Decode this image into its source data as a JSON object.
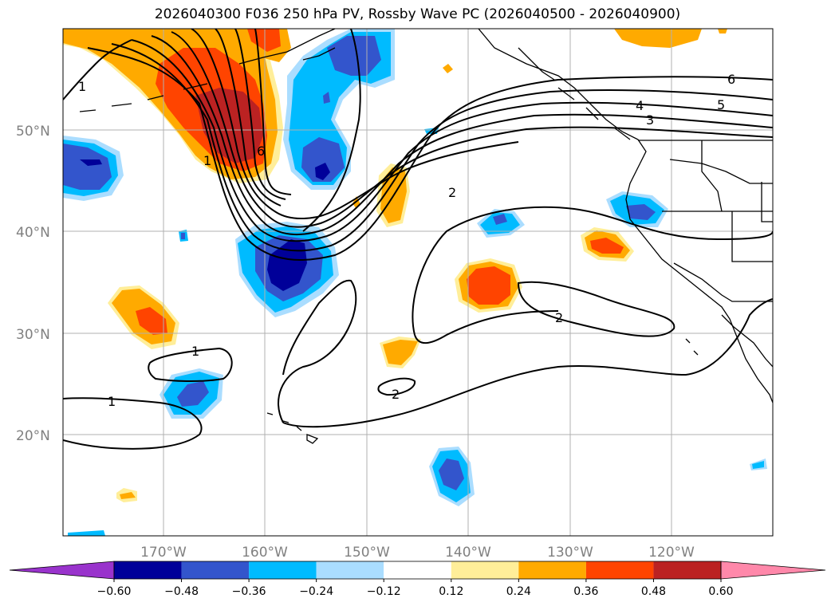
{
  "title": "2026040300 F036 250 hPa PV, Rossby Wave PC (2026040500 - 2026040900)",
  "map": {
    "lon_labels": [
      "170°W",
      "160°W",
      "150°W",
      "140°W",
      "130°W",
      "120°W"
    ],
    "lat_labels": [
      "50°N",
      "40°N",
      "30°N",
      "20°N"
    ],
    "contour_labels": [
      "1",
      "1",
      "1",
      "2",
      "2",
      "2",
      "3",
      "4",
      "5",
      "6",
      "6",
      "1"
    ]
  },
  "colorbar": {
    "ticks": [
      "−0.60",
      "−0.48",
      "−0.36",
      "−0.24",
      "−0.12",
      "0.12",
      "0.24",
      "0.36",
      "0.48",
      "0.60"
    ],
    "colors": [
      "#9933cc",
      "#000099",
      "#3355cc",
      "#00bbff",
      "#aaddff",
      "#ffffff",
      "#ffee99",
      "#ffaa00",
      "#ff4400",
      "#bb2222",
      "#ff88aa"
    ]
  }
}
